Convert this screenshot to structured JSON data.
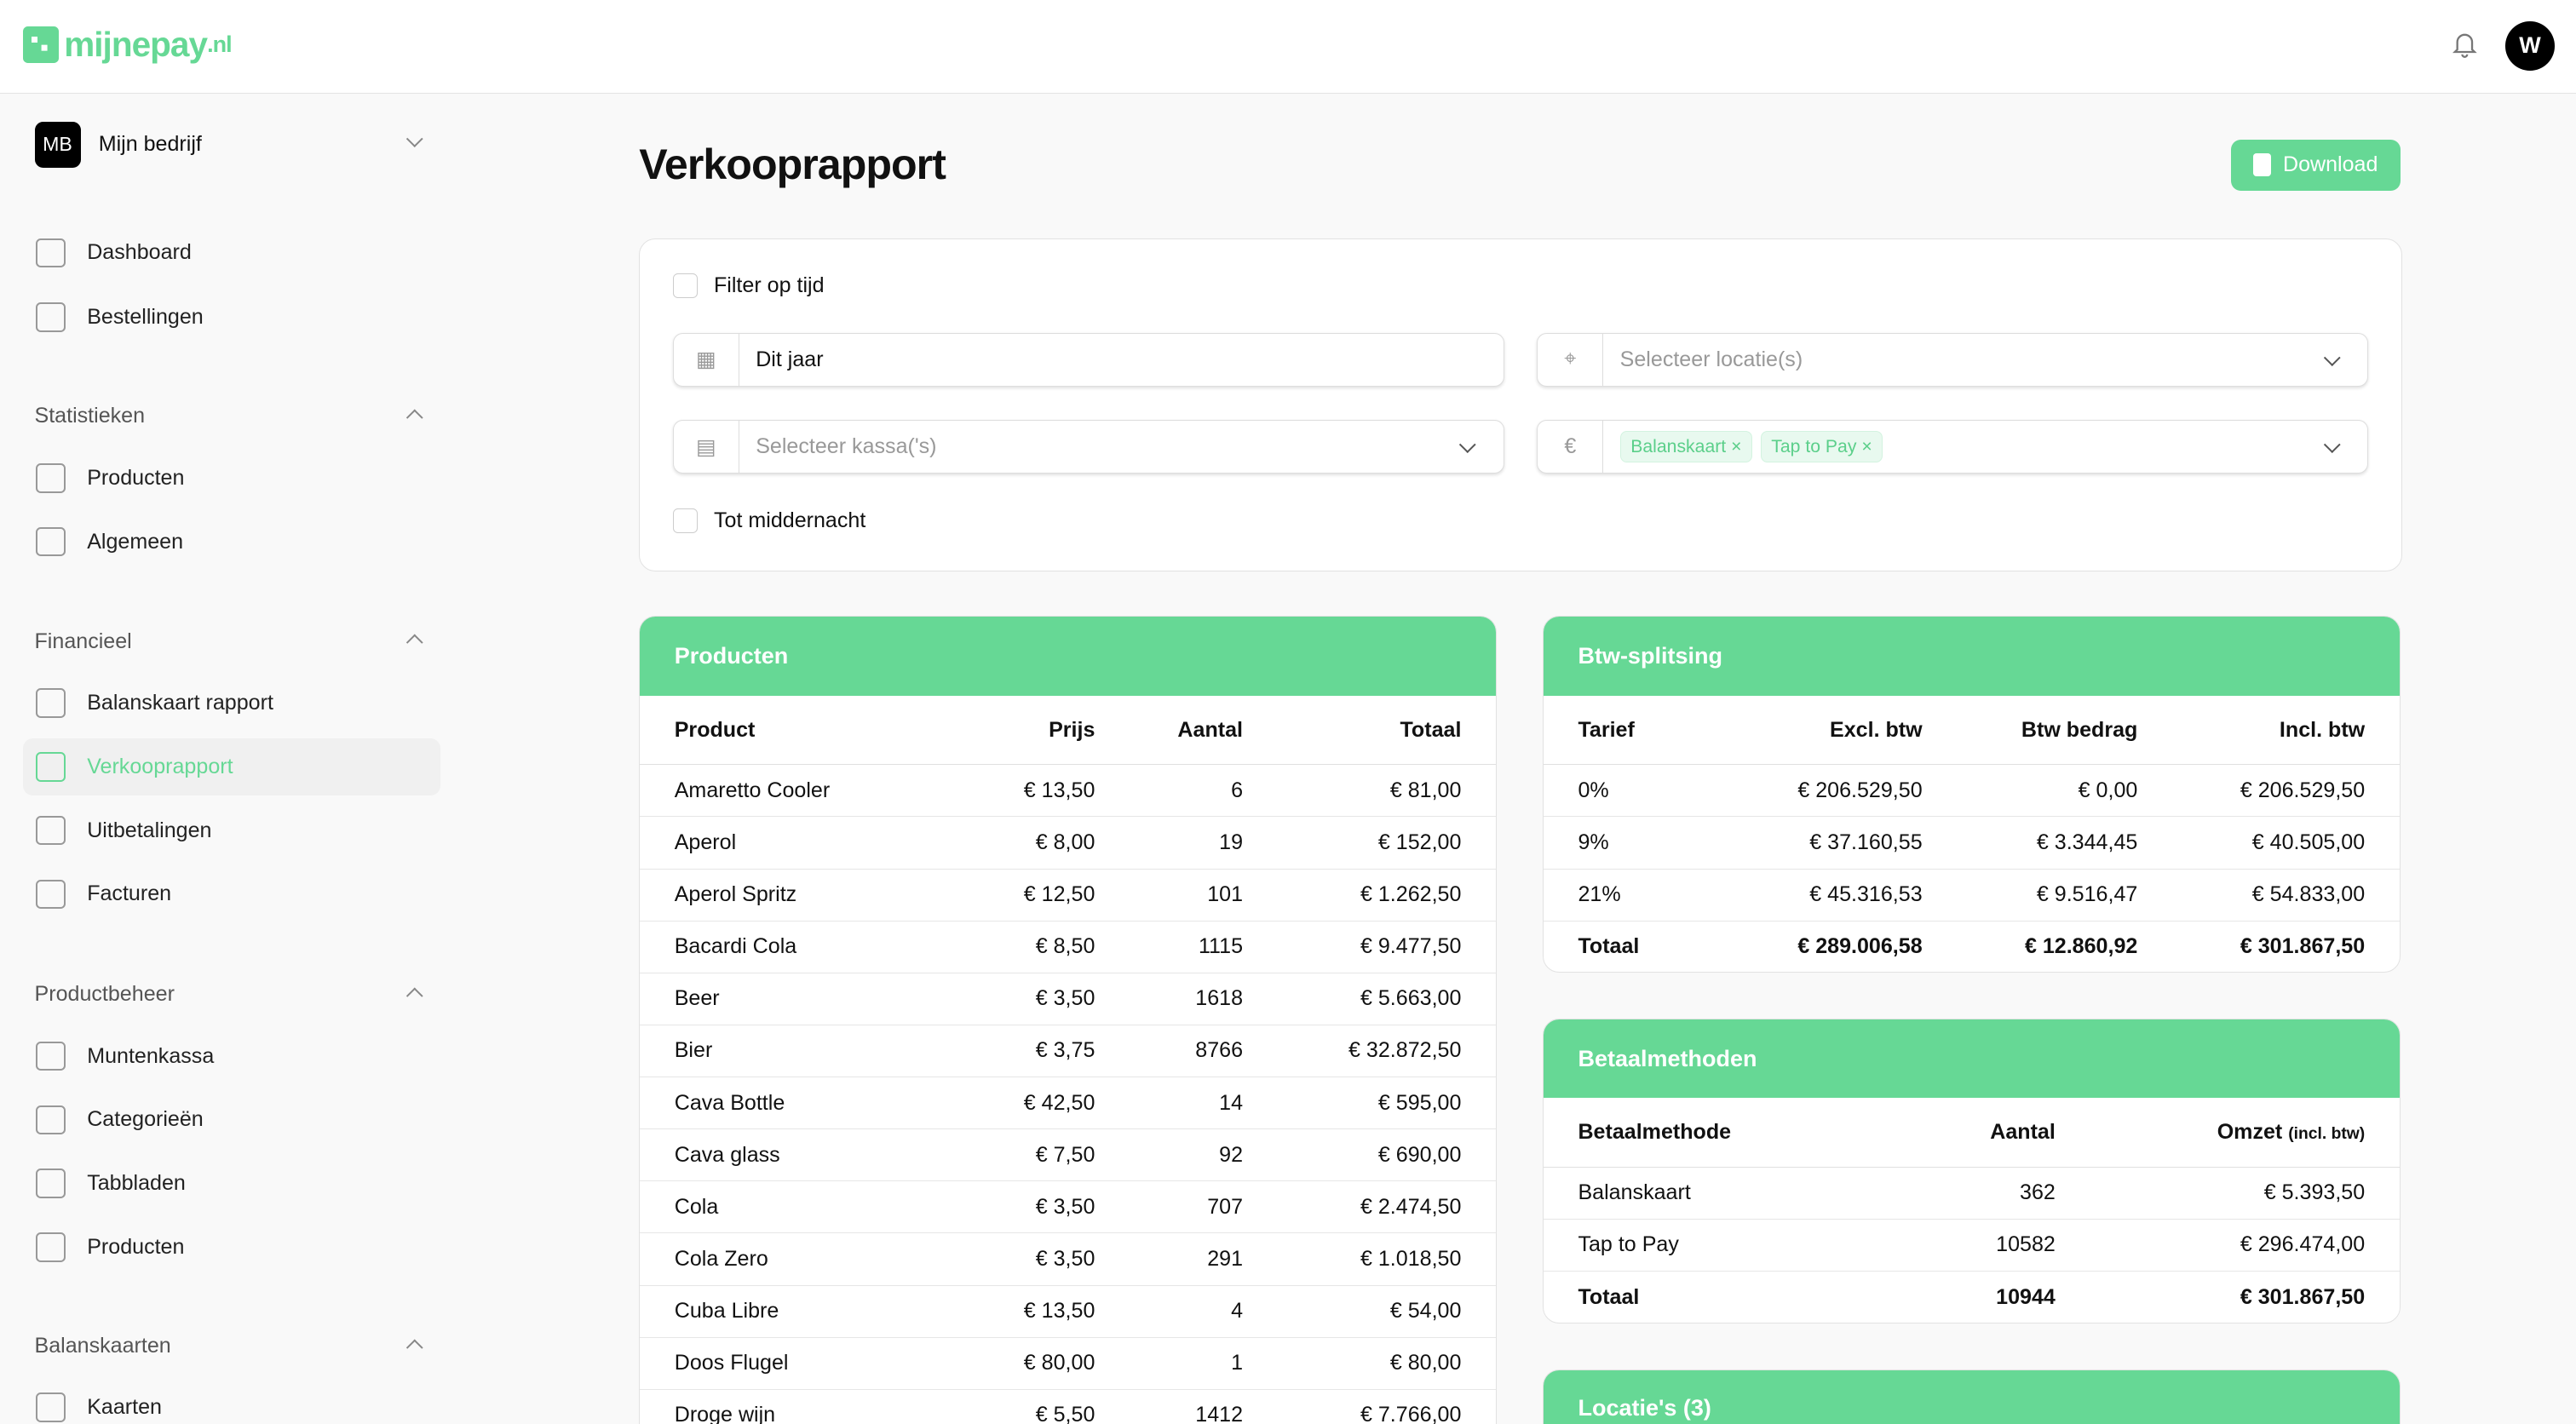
{
  "header": {
    "logo": "mijnepay.nl",
    "logo_main": "mijnepay",
    "logo_tld": ".nl",
    "avatar": "W",
    "accent": "#66d895"
  },
  "sidebar": {
    "company_initials": "MB",
    "company_name": "Mijn bedrijf",
    "top": [
      {
        "label": "Dashboard",
        "icon": "layout-icon"
      },
      {
        "label": "Bestellingen",
        "icon": "cart-icon"
      }
    ],
    "sections": [
      {
        "title": "Statistieken",
        "items": [
          {
            "label": "Producten",
            "icon": "chart-icon"
          },
          {
            "label": "Algemeen",
            "icon": "analytics-icon"
          }
        ]
      },
      {
        "title": "Financieel",
        "items": [
          {
            "label": "Balanskaart rapport",
            "icon": "document-icon"
          },
          {
            "label": "Verkooprapport",
            "icon": "report-icon",
            "active": true
          },
          {
            "label": "Uitbetalingen",
            "icon": "euro-icon"
          },
          {
            "label": "Facturen",
            "icon": "invoice-icon"
          }
        ]
      },
      {
        "title": "Productbeheer",
        "items": [
          {
            "label": "Muntenkassa",
            "icon": "coins-icon"
          },
          {
            "label": "Categorieën",
            "icon": "shapes-icon"
          },
          {
            "label": "Tabbladen",
            "icon": "tabs-icon"
          },
          {
            "label": "Producten",
            "icon": "box-icon"
          }
        ]
      },
      {
        "title": "Balanskaarten",
        "items": [
          {
            "label": "Kaarten",
            "icon": "card-icon"
          }
        ]
      }
    ]
  },
  "page": {
    "title": "Verkooprapport",
    "download": "Download"
  },
  "filters": {
    "time_filter": "Filter op tijd",
    "period": "Dit jaar",
    "location_placeholder": "Selecteer locatie(s)",
    "register_placeholder": "Selecteer kassa('s)",
    "payment_tags": [
      "Balanskaart",
      "Tap to Pay"
    ],
    "midnight": "Tot middernacht"
  },
  "products": {
    "title": "Producten",
    "columns": [
      "Product",
      "Prijs",
      "Aantal",
      "Totaal"
    ],
    "rows": [
      [
        "Amaretto Cooler",
        "€ 13,50",
        "6",
        "€ 81,00"
      ],
      [
        "Aperol",
        "€ 8,00",
        "19",
        "€ 152,00"
      ],
      [
        "Aperol Spritz",
        "€ 12,50",
        "101",
        "€ 1.262,50"
      ],
      [
        "Bacardi Cola",
        "€ 8,50",
        "1115",
        "€ 9.477,50"
      ],
      [
        "Beer",
        "€ 3,50",
        "1618",
        "€ 5.663,00"
      ],
      [
        "Bier",
        "€ 3,75",
        "8766",
        "€ 32.872,50"
      ],
      [
        "Cava Bottle",
        "€ 42,50",
        "14",
        "€ 595,00"
      ],
      [
        "Cava glass",
        "€ 7,50",
        "92",
        "€ 690,00"
      ],
      [
        "Cola",
        "€ 3,50",
        "707",
        "€ 2.474,50"
      ],
      [
        "Cola Zero",
        "€ 3,50",
        "291",
        "€ 1.018,50"
      ],
      [
        "Cuba Libre",
        "€ 13,50",
        "4",
        "€ 54,00"
      ],
      [
        "Doos Flugel",
        "€ 80,00",
        "1",
        "€ 80,00"
      ],
      [
        "Droge wijn",
        "€ 5,50",
        "1412",
        "€ 7.766,00"
      ]
    ]
  },
  "vat": {
    "title": "Btw-splitsing",
    "columns": [
      "Tarief",
      "Excl. btw",
      "Btw bedrag",
      "Incl. btw"
    ],
    "rows": [
      [
        "0%",
        "€ 206.529,50",
        "€ 0,00",
        "€ 206.529,50"
      ],
      [
        "9%",
        "€ 37.160,55",
        "€ 3.344,45",
        "€ 40.505,00"
      ],
      [
        "21%",
        "€ 45.316,53",
        "€ 9.516,47",
        "€ 54.833,00"
      ]
    ],
    "total": [
      "Totaal",
      "€ 289.006,58",
      "€ 12.860,92",
      "€ 301.867,50"
    ]
  },
  "payments": {
    "title": "Betaalmethoden",
    "columns": [
      "Betaalmethode",
      "Aantal",
      "Omzet"
    ],
    "omzet_note": "(incl. btw)",
    "rows": [
      [
        "Balanskaart",
        "362",
        "€ 5.393,50"
      ],
      [
        "Tap to Pay",
        "10582",
        "€ 296.474,00"
      ]
    ],
    "total": [
      "Totaal",
      "10944",
      "€ 301.867,50"
    ]
  },
  "locations": {
    "title": "Locatie's (3)"
  }
}
